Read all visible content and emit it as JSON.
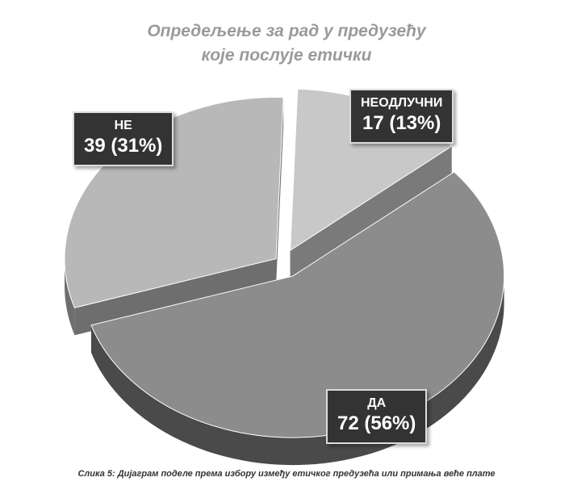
{
  "chart_data": {
    "type": "pie",
    "title_lines": [
      "Опредељење за рад у предузећу",
      "које послује етички"
    ],
    "slices": [
      {
        "category": "ДА",
        "count": 72,
        "percent_label": "72 (56%)",
        "color": "#8c8c8c",
        "side_color": "#4a4a4a"
      },
      {
        "category": "НЕ",
        "count": 39,
        "percent_label": "39 (31%)",
        "color": "#b8b8b8",
        "side_color": "#6e6e6e"
      },
      {
        "category": "НЕОДЛУЧНИ",
        "count": 17,
        "percent_label": "17 (13%)",
        "color": "#c8c8c8",
        "side_color": "#7a7a7a"
      }
    ],
    "style": "3d-exploded",
    "legend": "none"
  },
  "caption": "Слика 5: Дијаграм поделе према избору између етичког предузећа или примања веће плате"
}
